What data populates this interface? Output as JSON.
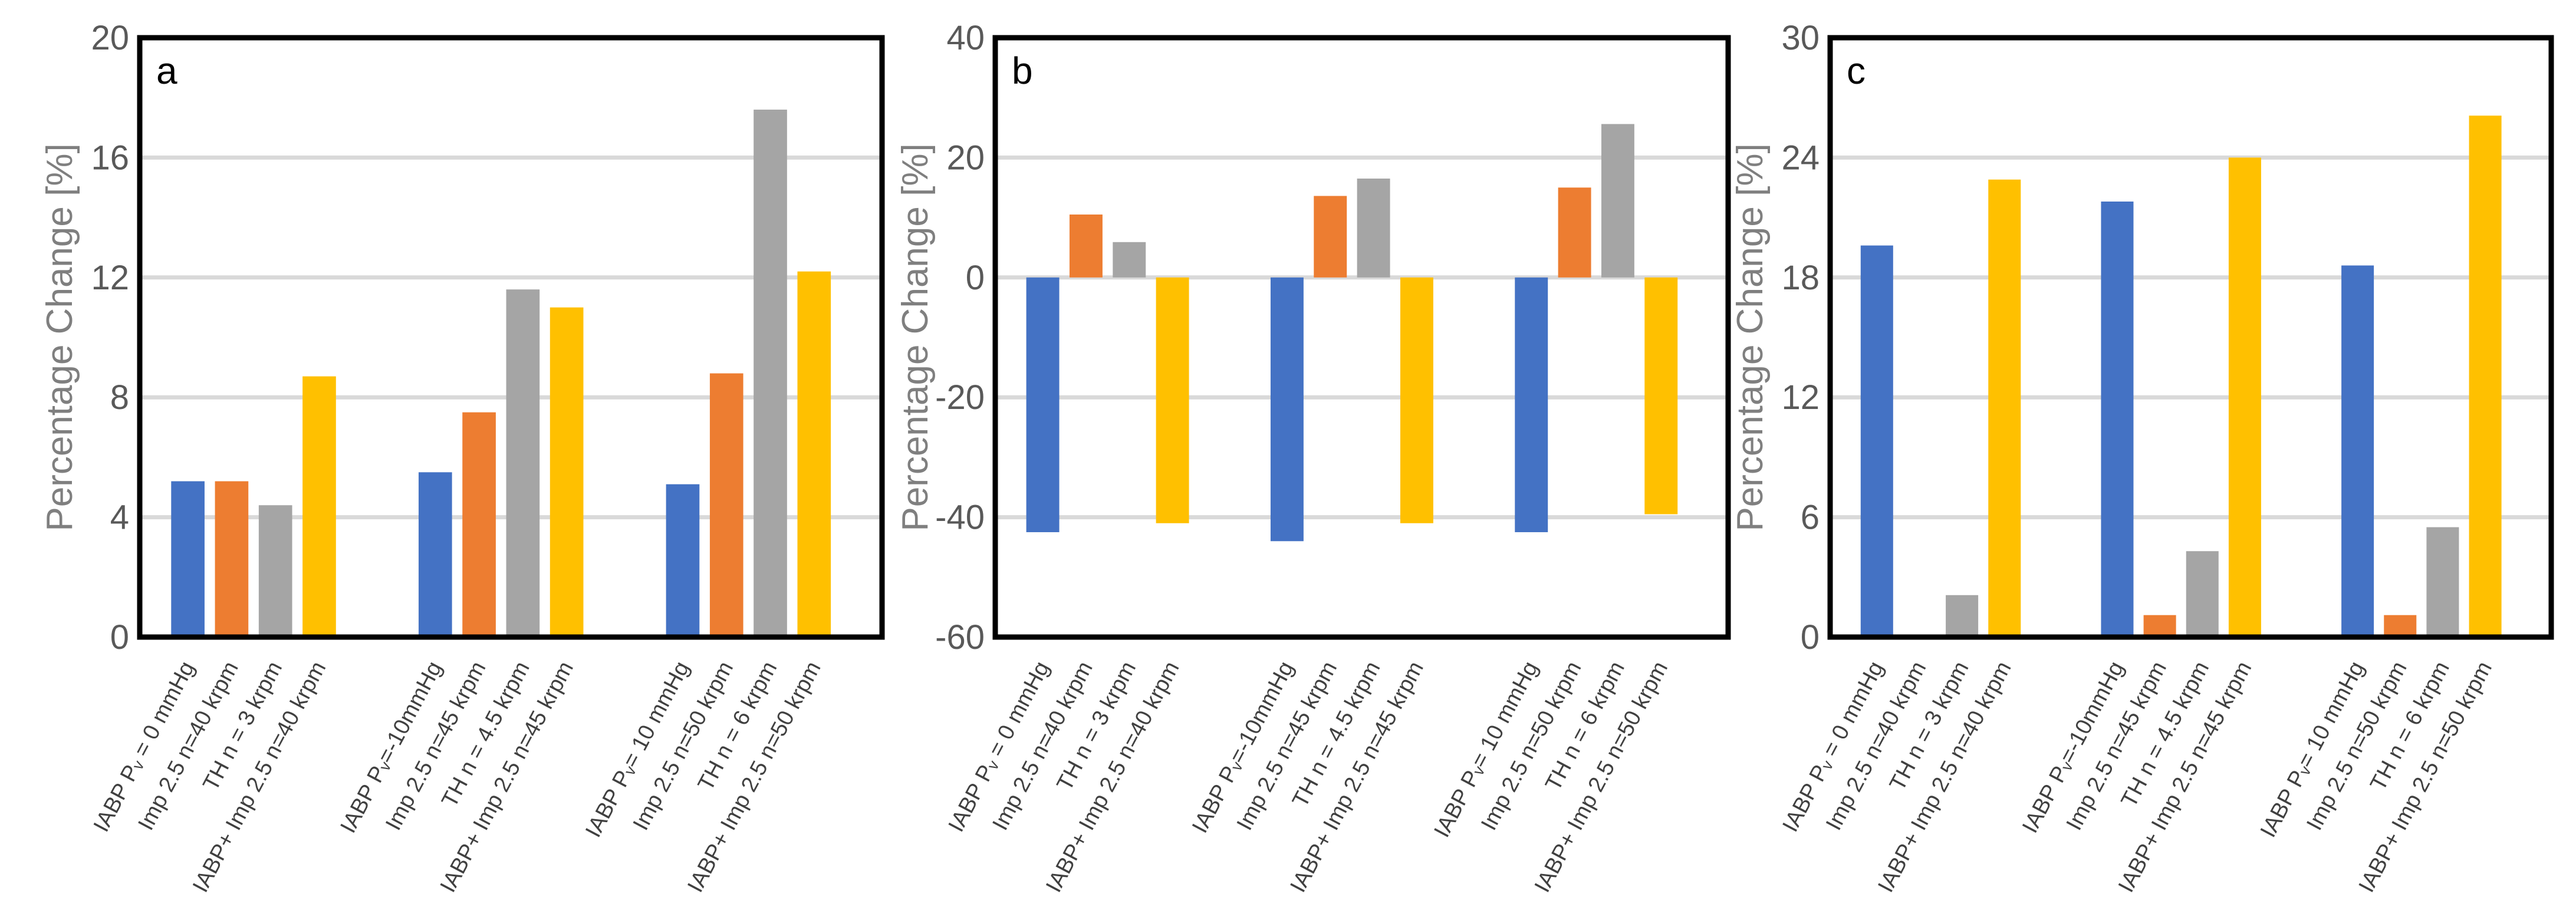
{
  "chart_data": [
    {
      "type": "bar",
      "panel_label": "a",
      "ylabel": "Percentage Change [%]",
      "ylim": [
        0,
        20
      ],
      "yticks": [
        0,
        4,
        8,
        12,
        16,
        20
      ],
      "grid": true,
      "groups": [
        {
          "labels": [
            "IABP Pᵥ = 0 mmHg",
            "Imp 2.5 n=40 krpm",
            "TH n = 3 krpm",
            "IABP+ Imp 2.5 n=40 krpm"
          ],
          "values": [
            5.2,
            5.2,
            4.4,
            8.7
          ]
        },
        {
          "labels": [
            "IABP Pᵥ=-10mmHg",
            "Imp 2.5 n=45 krpm",
            "TH n = 4.5 krpm",
            "IABP+ Imp 2.5 n=45 krpm"
          ],
          "values": [
            5.5,
            7.5,
            11.6,
            11.0
          ]
        },
        {
          "labels": [
            "IABP Pᵥ= 10 mmHg",
            "Imp 2.5 n=50 krpm",
            "TH n = 6 krpm",
            "IABP+ Imp 2.5 n=50 krpm"
          ],
          "values": [
            5.1,
            8.8,
            17.6,
            12.2
          ]
        }
      ]
    },
    {
      "type": "bar",
      "panel_label": "b",
      "ylabel": "Percentage Change [%]",
      "ylim": [
        -60,
        40
      ],
      "yticks": [
        -60,
        -40,
        -20,
        0,
        20,
        40
      ],
      "grid": true,
      "groups": [
        {
          "labels": [
            "IABP Pᵥ = 0 mmHg",
            "Imp 2.5 n=40 krpm",
            "TH n = 3 krpm",
            "IABP+ Imp 2.5 n=40 krpm"
          ],
          "values": [
            -42.5,
            10.5,
            5.9,
            -41
          ]
        },
        {
          "labels": [
            "IABP Pᵥ=-10mmHg",
            "Imp 2.5 n=45 krpm",
            "TH n = 4.5 krpm",
            "IABP+ Imp 2.5 n=45 krpm"
          ],
          "values": [
            -44,
            13.6,
            16.5,
            -41
          ]
        },
        {
          "labels": [
            "IABP Pᵥ= 10 mmHg",
            "Imp 2.5 n=50 krpm",
            "TH n = 6 krpm",
            "IABP+ Imp 2.5 n=50 krpm"
          ],
          "values": [
            -42.5,
            15.0,
            25.6,
            -39.5
          ]
        }
      ]
    },
    {
      "type": "bar",
      "panel_label": "c",
      "ylabel": "Percentage Change [%]",
      "ylim": [
        0,
        30
      ],
      "yticks": [
        0,
        6,
        12,
        18,
        24,
        30
      ],
      "grid": true,
      "groups": [
        {
          "labels": [
            "IABP Pᵥ = 0 mmHg",
            "Imp 2.5 n=40 krpm",
            "TH n = 3 krpm",
            "IABP+ Imp 2.5 n=40 krpm"
          ],
          "values": [
            19.6,
            0,
            2.1,
            22.9
          ]
        },
        {
          "labels": [
            "IABP Pᵥ=-10mmHg",
            "Imp 2.5 n=45 krpm",
            "TH n = 4.5 krpm",
            "IABP+ Imp 2.5 n=45 krpm"
          ],
          "values": [
            21.8,
            1.1,
            4.3,
            24.0
          ]
        },
        {
          "labels": [
            "IABP Pᵥ= 10 mmHg",
            "Imp 2.5 n=50 krpm",
            "TH n = 6 krpm",
            "IABP+ Imp 2.5 n=50 krpm"
          ],
          "values": [
            18.6,
            1.1,
            5.5,
            26.1
          ]
        }
      ]
    }
  ],
  "colors": [
    "#4472C4",
    "#ED7D31",
    "#A5A5A5",
    "#FFC000"
  ]
}
